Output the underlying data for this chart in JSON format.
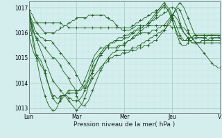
{
  "title": "",
  "xlabel": "Pression niveau de la mer( hPa )",
  "ylabel": "",
  "bg_color": "#d4eeee",
  "grid_color_major": "#aacccc",
  "grid_color_minor": "#c4e4e4",
  "line_color": "#1a5e1a",
  "marker_color": "#1a5e1a",
  "ylim": [
    1012.8,
    1017.25
  ],
  "yticks": [
    1013,
    1014,
    1015,
    1016,
    1017
  ],
  "xtick_labels": [
    "Lun",
    "Mar",
    "Mer",
    "Jeu",
    "V"
  ],
  "xtick_positions": [
    0,
    24,
    48,
    72,
    96
  ],
  "series": [
    [
      1016.9,
      1016.8,
      1016.7,
      1016.5,
      1016.4,
      1016.3,
      1016.2,
      1016.1,
      1016.0,
      1016.0,
      1016.0,
      1016.0,
      1016.0,
      1016.0,
      1016.1,
      1016.1,
      1016.2,
      1016.2,
      1016.3,
      1016.3,
      1016.4,
      1016.4,
      1016.5,
      1016.5,
      1016.6,
      1016.6,
      1016.6,
      1016.6,
      1016.6,
      1016.6,
      1016.7,
      1016.7,
      1016.7,
      1016.7,
      1016.7,
      1016.7,
      1016.7,
      1016.7,
      1016.7,
      1016.6,
      1016.6,
      1016.5,
      1016.5,
      1016.4,
      1016.3,
      1016.2,
      1016.2,
      1016.1,
      1016.1,
      1016.1,
      1016.1,
      1016.1,
      1016.2,
      1016.2,
      1016.3,
      1016.3,
      1016.3,
      1016.3,
      1016.3,
      1016.3,
      1016.3,
      1016.3,
      1016.3,
      1016.3,
      1016.3,
      1016.3,
      1016.3,
      1016.3,
      1016.3,
      1016.3,
      1016.3,
      1016.3,
      1016.2,
      1016.2,
      1016.2,
      1016.2,
      1016.2,
      1016.2,
      1016.2,
      1016.1,
      1016.0,
      1015.9,
      1015.8,
      1015.7,
      1015.6,
      1015.5,
      1015.4,
      1015.3,
      1015.2,
      1015.1,
      1015.0,
      1014.9,
      1014.8,
      1014.7,
      1014.7,
      1014.6,
      1014.6
    ],
    [
      1016.9,
      1016.5,
      1016.1,
      1015.9,
      1015.8,
      1015.7,
      1015.6,
      1015.5,
      1015.4,
      1015.3,
      1015.2,
      1015.1,
      1015.0,
      1015.0,
      1014.9,
      1014.8,
      1014.7,
      1014.5,
      1014.4,
      1014.3,
      1014.2,
      1014.0,
      1013.9,
      1013.8,
      1013.5,
      1013.3,
      1013.2,
      1013.1,
      1013.1,
      1013.2,
      1013.3,
      1013.5,
      1013.7,
      1013.9,
      1014.1,
      1014.3,
      1014.5,
      1014.6,
      1014.8,
      1014.9,
      1015.0,
      1015.1,
      1015.2,
      1015.2,
      1015.3,
      1015.3,
      1015.3,
      1015.3,
      1015.3,
      1015.3,
      1015.3,
      1015.3,
      1015.4,
      1015.4,
      1015.4,
      1015.5,
      1015.5,
      1015.6,
      1015.6,
      1015.7,
      1015.7,
      1015.8,
      1015.8,
      1015.9,
      1015.9,
      1016.0,
      1016.0,
      1016.1,
      1016.1,
      1016.2,
      1016.3,
      1016.4,
      1016.6,
      1016.8,
      1017.0,
      1017.1,
      1017.2,
      1017.1,
      1017.0,
      1016.8,
      1016.6,
      1016.4,
      1016.2,
      1016.0,
      1015.9,
      1015.8,
      1015.8,
      1015.8,
      1015.8,
      1015.8,
      1015.9,
      1015.9,
      1015.9,
      1015.9,
      1015.9,
      1015.9,
      1015.8
    ],
    [
      1016.9,
      1016.2,
      1015.6,
      1015.3,
      1015.1,
      1015.0,
      1014.9,
      1014.7,
      1014.5,
      1014.2,
      1013.9,
      1013.7,
      1013.5,
      1013.5,
      1013.4,
      1013.4,
      1013.5,
      1013.5,
      1013.5,
      1013.6,
      1013.7,
      1013.7,
      1013.7,
      1013.7,
      1013.7,
      1013.7,
      1013.7,
      1013.8,
      1013.9,
      1014.0,
      1014.2,
      1014.5,
      1014.7,
      1014.9,
      1015.0,
      1015.1,
      1015.2,
      1015.3,
      1015.4,
      1015.5,
      1015.5,
      1015.6,
      1015.6,
      1015.6,
      1015.7,
      1015.7,
      1015.7,
      1015.7,
      1015.8,
      1015.8,
      1015.8,
      1015.9,
      1016.0,
      1016.0,
      1016.1,
      1016.1,
      1016.2,
      1016.2,
      1016.3,
      1016.3,
      1016.4,
      1016.4,
      1016.5,
      1016.5,
      1016.6,
      1016.6,
      1016.7,
      1016.7,
      1016.8,
      1016.8,
      1016.9,
      1017.0,
      1017.0,
      1017.0,
      1016.9,
      1016.7,
      1016.4,
      1016.2,
      1016.0,
      1015.9,
      1015.8,
      1015.7,
      1015.6,
      1015.6,
      1015.6,
      1015.6,
      1015.6,
      1015.7,
      1015.7,
      1015.7,
      1015.7,
      1015.8,
      1015.8,
      1015.8,
      1015.8,
      1015.8,
      1015.8
    ],
    [
      1015.9,
      1015.6,
      1015.3,
      1015.1,
      1015.0,
      1014.9,
      1014.7,
      1014.6,
      1014.4,
      1014.1,
      1013.9,
      1013.6,
      1013.4,
      1013.3,
      1013.2,
      1013.2,
      1013.3,
      1013.4,
      1013.5,
      1013.6,
      1013.6,
      1013.6,
      1013.6,
      1013.6,
      1013.6,
      1013.7,
      1013.8,
      1013.9,
      1014.1,
      1014.3,
      1014.5,
      1014.7,
      1014.9,
      1015.1,
      1015.2,
      1015.3,
      1015.4,
      1015.4,
      1015.4,
      1015.4,
      1015.4,
      1015.4,
      1015.4,
      1015.4,
      1015.4,
      1015.5,
      1015.5,
      1015.5,
      1015.6,
      1015.6,
      1015.7,
      1015.7,
      1015.8,
      1015.8,
      1015.9,
      1015.9,
      1016.0,
      1016.0,
      1016.0,
      1016.0,
      1016.0,
      1016.0,
      1016.1,
      1016.1,
      1016.1,
      1016.2,
      1016.2,
      1016.3,
      1016.3,
      1016.4,
      1016.5,
      1016.6,
      1016.7,
      1016.7,
      1016.6,
      1016.5,
      1016.3,
      1016.1,
      1016.0,
      1015.9,
      1015.8,
      1015.7,
      1015.6,
      1015.6,
      1015.6,
      1015.6,
      1015.6,
      1015.7,
      1015.7,
      1015.7,
      1015.7,
      1015.7,
      1015.7,
      1015.8,
      1015.8,
      1015.8,
      1015.8
    ],
    [
      1015.9,
      1016.2,
      1016.4,
      1016.4,
      1016.4,
      1016.4,
      1016.4,
      1016.4,
      1016.4,
      1016.4,
      1016.4,
      1016.4,
      1016.4,
      1016.4,
      1016.4,
      1016.4,
      1016.4,
      1016.3,
      1016.3,
      1016.3,
      1016.2,
      1016.2,
      1016.2,
      1016.2,
      1016.2,
      1016.2,
      1016.2,
      1016.2,
      1016.2,
      1016.2,
      1016.2,
      1016.2,
      1016.2,
      1016.2,
      1016.2,
      1016.2,
      1016.2,
      1016.2,
      1016.2,
      1016.2,
      1016.2,
      1016.2,
      1016.2,
      1016.2,
      1016.2,
      1016.2,
      1016.2,
      1016.2,
      1016.2,
      1016.2,
      1016.2,
      1016.2,
      1016.3,
      1016.3,
      1016.4,
      1016.4,
      1016.5,
      1016.5,
      1016.6,
      1016.6,
      1016.7,
      1016.7,
      1016.8,
      1016.8,
      1016.9,
      1016.9,
      1017.0,
      1017.0,
      1017.0,
      1017.0,
      1016.9,
      1016.8,
      1016.6,
      1016.3,
      1016.0,
      1015.8,
      1015.6,
      1015.5,
      1015.5,
      1015.5,
      1015.6,
      1015.7,
      1015.7,
      1015.8,
      1015.8,
      1015.8,
      1015.8,
      1015.8,
      1015.8,
      1015.8,
      1015.7,
      1015.7,
      1015.7,
      1015.7,
      1015.7,
      1015.7,
      1015.7
    ],
    [
      1016.9,
      1016.6,
      1016.4,
      1016.1,
      1016.0,
      1015.9,
      1015.8,
      1015.8,
      1015.7,
      1015.7,
      1015.7,
      1015.7,
      1015.6,
      1015.5,
      1015.4,
      1015.3,
      1015.2,
      1015.1,
      1015.0,
      1014.9,
      1014.8,
      1014.7,
      1014.6,
      1014.5,
      1014.3,
      1014.2,
      1014.0,
      1013.9,
      1013.8,
      1013.8,
      1013.9,
      1014.0,
      1014.2,
      1014.3,
      1014.4,
      1014.5,
      1014.6,
      1014.7,
      1014.8,
      1014.8,
      1014.9,
      1015.0,
      1015.0,
      1015.1,
      1015.1,
      1015.1,
      1015.1,
      1015.2,
      1015.2,
      1015.2,
      1015.2,
      1015.3,
      1015.3,
      1015.3,
      1015.3,
      1015.4,
      1015.4,
      1015.4,
      1015.5,
      1015.5,
      1015.5,
      1015.6,
      1015.6,
      1015.7,
      1015.7,
      1015.8,
      1015.9,
      1016.0,
      1016.1,
      1016.2,
      1016.4,
      1016.5,
      1016.7,
      1016.8,
      1016.9,
      1017.0,
      1016.9,
      1016.7,
      1016.5,
      1016.3,
      1016.1,
      1015.9,
      1015.8,
      1015.7,
      1015.6,
      1015.6,
      1015.6,
      1015.6,
      1015.6,
      1015.6,
      1015.6,
      1015.6,
      1015.6,
      1015.6,
      1015.6,
      1015.6,
      1015.6
    ],
    [
      1016.9,
      1016.5,
      1016.2,
      1015.9,
      1015.7,
      1015.5,
      1015.3,
      1015.1,
      1014.9,
      1014.7,
      1014.5,
      1014.3,
      1014.1,
      1014.0,
      1013.9,
      1013.8,
      1013.7,
      1013.6,
      1013.5,
      1013.4,
      1013.3,
      1013.2,
      1013.1,
      1013.0,
      1012.9,
      1013.0,
      1013.1,
      1013.2,
      1013.4,
      1013.6,
      1013.9,
      1014.1,
      1014.4,
      1014.6,
      1014.8,
      1015.0,
      1015.1,
      1015.2,
      1015.3,
      1015.4,
      1015.4,
      1015.4,
      1015.4,
      1015.4,
      1015.4,
      1015.4,
      1015.5,
      1015.5,
      1015.5,
      1015.6,
      1015.7,
      1015.7,
      1015.8,
      1015.9,
      1015.9,
      1016.0,
      1016.1,
      1016.1,
      1016.2,
      1016.2,
      1016.3,
      1016.4,
      1016.5,
      1016.6,
      1016.7,
      1016.8,
      1016.9,
      1017.0,
      1017.1,
      1017.0,
      1016.9,
      1016.7,
      1016.5,
      1016.3,
      1016.1,
      1015.9,
      1015.8,
      1015.7,
      1015.7,
      1015.7,
      1015.8,
      1015.8,
      1015.8,
      1015.9,
      1015.9,
      1015.9,
      1015.9,
      1015.9,
      1015.9,
      1015.9,
      1015.9,
      1015.9,
      1015.9,
      1015.9,
      1015.9,
      1015.9,
      1015.9
    ],
    [
      1016.9,
      1016.4,
      1015.9,
      1015.4,
      1014.9,
      1014.5,
      1014.1,
      1013.8,
      1013.5,
      1013.3,
      1013.1,
      1013.0,
      1012.9,
      1012.9,
      1013.0,
      1013.2,
      1013.4,
      1013.5,
      1013.5,
      1013.5,
      1013.4,
      1013.4,
      1013.3,
      1013.3,
      1013.3,
      1013.3,
      1013.4,
      1013.5,
      1013.7,
      1013.9,
      1014.1,
      1014.3,
      1014.5,
      1014.7,
      1014.8,
      1015.0,
      1015.1,
      1015.2,
      1015.3,
      1015.4,
      1015.5,
      1015.6,
      1015.6,
      1015.7,
      1015.7,
      1015.8,
      1015.8,
      1015.8,
      1015.9,
      1015.9,
      1015.9,
      1016.0,
      1016.0,
      1016.1,
      1016.1,
      1016.2,
      1016.2,
      1016.2,
      1016.3,
      1016.3,
      1016.4,
      1016.5,
      1016.6,
      1016.7,
      1016.8,
      1016.9,
      1017.0,
      1017.1,
      1017.2,
      1017.1,
      1017.0,
      1016.9,
      1016.7,
      1016.5,
      1016.3,
      1016.1,
      1015.9,
      1015.8,
      1015.7,
      1015.7,
      1015.7,
      1015.8,
      1015.8,
      1015.9,
      1015.9,
      1015.9,
      1015.9,
      1015.9,
      1015.9,
      1015.9,
      1015.9,
      1015.9,
      1015.9,
      1015.9,
      1015.9,
      1015.9,
      1015.9
    ]
  ]
}
